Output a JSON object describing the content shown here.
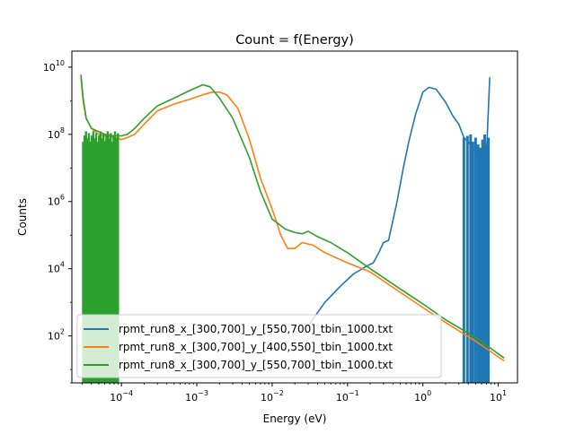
{
  "chart_data": {
    "type": "line",
    "title": "Count = f(Energy)",
    "xlabel": "Energy (eV)",
    "ylabel": "Counts",
    "xscale": "log",
    "yscale": "log",
    "xlim": [
      2.2e-05,
      18
    ],
    "ylim": [
      4,
      30000000000
    ],
    "grid": false,
    "legend_position": "lower-left",
    "x_ticks": [
      {
        "value": 0.0001,
        "base": "10",
        "exp": "−4"
      },
      {
        "value": 0.001,
        "base": "10",
        "exp": "−3"
      },
      {
        "value": 0.01,
        "base": "10",
        "exp": "−2"
      },
      {
        "value": 0.1,
        "base": "10",
        "exp": "−1"
      },
      {
        "value": 1,
        "base": "10",
        "exp": "0"
      },
      {
        "value": 10,
        "base": "10",
        "exp": "1"
      }
    ],
    "y_ticks": [
      {
        "value": 100,
        "base": "10",
        "exp": "2"
      },
      {
        "value": 10000,
        "base": "10",
        "exp": "4"
      },
      {
        "value": 1000000,
        "base": "10",
        "exp": "6"
      },
      {
        "value": 100000000,
        "base": "10",
        "exp": "8"
      },
      {
        "value": 10000000000,
        "base": "10",
        "exp": "10"
      }
    ],
    "series": [
      {
        "name": "rpmt_run8_x_[300,700]_y_[550,700]_tbin_1000.txt",
        "color": "#1f77b4",
        "points": [
          [
            0.03,
            200
          ],
          [
            0.05,
            1000
          ],
          [
            0.08,
            3000
          ],
          [
            0.12,
            7000
          ],
          [
            0.18,
            12000
          ],
          [
            0.22,
            15000
          ],
          [
            0.26,
            30000
          ],
          [
            0.3,
            60000
          ],
          [
            0.35,
            70000
          ],
          [
            0.45,
            900000
          ],
          [
            0.55,
            10000000
          ],
          [
            0.65,
            60000000
          ],
          [
            0.8,
            400000000
          ],
          [
            1.0,
            1800000000
          ],
          [
            1.2,
            2500000000
          ],
          [
            1.5,
            2200000000
          ],
          [
            2.0,
            900000000
          ],
          [
            2.5,
            350000000
          ],
          [
            3.0,
            200000000
          ],
          [
            3.5,
            80000000
          ],
          [
            4.0,
            60000000
          ],
          [
            4.5,
            40000000
          ],
          [
            5.0,
            30000000
          ],
          [
            6.0,
            20000000
          ],
          [
            7.0,
            30000000
          ],
          [
            7.7,
            5000000000
          ]
        ],
        "spikes": [
          [
            3.5,
            80000000
          ],
          [
            3.9,
            90000000
          ],
          [
            4.3,
            100000000
          ],
          [
            4.6,
            60000000
          ],
          [
            5.0,
            80000000
          ],
          [
            5.4,
            50000000
          ],
          [
            5.8,
            40000000
          ],
          [
            6.2,
            70000000
          ],
          [
            6.6,
            100000000
          ],
          [
            7.0,
            50000000
          ],
          [
            7.4,
            80000000
          ]
        ]
      },
      {
        "name": "rpmt_run8_x_[300,700]_y_[400,550]_tbin_1000.txt",
        "color": "#ff7f0e",
        "points": [
          [
            2.9e-05,
            5000000000
          ],
          [
            3.1e-05,
            1000000000
          ],
          [
            3.4e-05,
            300000000
          ],
          [
            4e-05,
            150000000
          ],
          [
            5e-05,
            100000000
          ],
          [
            6e-05,
            90000000
          ],
          [
            8e-05,
            80000000
          ],
          [
            0.0001,
            70000000
          ],
          [
            0.00012,
            80000000
          ],
          [
            0.00015,
            100000000
          ],
          [
            0.0002,
            200000000
          ],
          [
            0.0003,
            500000000
          ],
          [
            0.0005,
            800000000
          ],
          [
            0.0008,
            1100000000
          ],
          [
            0.0012,
            1500000000
          ],
          [
            0.0016,
            1800000000
          ],
          [
            0.002,
            1800000000
          ],
          [
            0.0025,
            1500000000
          ],
          [
            0.0035,
            600000000
          ],
          [
            0.005,
            70000000
          ],
          [
            0.007,
            5000000
          ],
          [
            0.01,
            600000
          ],
          [
            0.013,
            100000
          ],
          [
            0.016,
            40000
          ],
          [
            0.02,
            40000
          ],
          [
            0.025,
            60000
          ],
          [
            0.035,
            50000
          ],
          [
            0.05,
            30000
          ],
          [
            0.1,
            15000
          ],
          [
            0.2,
            8000
          ],
          [
            0.5,
            2000
          ],
          [
            1,
            700
          ],
          [
            2,
            250
          ],
          [
            5,
            70
          ],
          [
            12,
            18
          ]
        ],
        "spikes": [
          [
            5.5e-05,
            0
          ],
          [
            6e-05,
            0
          ]
        ]
      },
      {
        "name": "rpmt_run8_x_[300,700]_y_[550,700]_tbin_1000.txt",
        "color": "#2ca02c",
        "points": [
          [
            2.9e-05,
            6000000000
          ],
          [
            3.1e-05,
            1200000000
          ],
          [
            3.4e-05,
            300000000
          ],
          [
            4e-05,
            150000000
          ],
          [
            5e-05,
            120000000
          ],
          [
            6e-05,
            100000000
          ],
          [
            8e-05,
            90000000
          ],
          [
            0.0001,
            90000000
          ],
          [
            0.00012,
            100000000
          ],
          [
            0.00015,
            150000000
          ],
          [
            0.0002,
            300000000
          ],
          [
            0.0003,
            700000000
          ],
          [
            0.0005,
            1200000000
          ],
          [
            0.0008,
            2000000000
          ],
          [
            0.0012,
            3000000000
          ],
          [
            0.0015,
            2600000000
          ],
          [
            0.002,
            1200000000
          ],
          [
            0.003,
            300000000
          ],
          [
            0.005,
            20000000
          ],
          [
            0.007,
            2000000
          ],
          [
            0.01,
            300000
          ],
          [
            0.015,
            150000
          ],
          [
            0.02,
            120000
          ],
          [
            0.025,
            110000
          ],
          [
            0.03,
            130000
          ],
          [
            0.04,
            90000
          ],
          [
            0.06,
            60000
          ],
          [
            0.1,
            30000
          ],
          [
            0.2,
            10000
          ],
          [
            0.5,
            2500
          ],
          [
            1,
            900
          ],
          [
            2,
            300
          ],
          [
            5,
            90
          ],
          [
            12,
            22
          ]
        ],
        "spikes_range": [
          3.1e-05,
          9e-05
        ]
      }
    ]
  }
}
